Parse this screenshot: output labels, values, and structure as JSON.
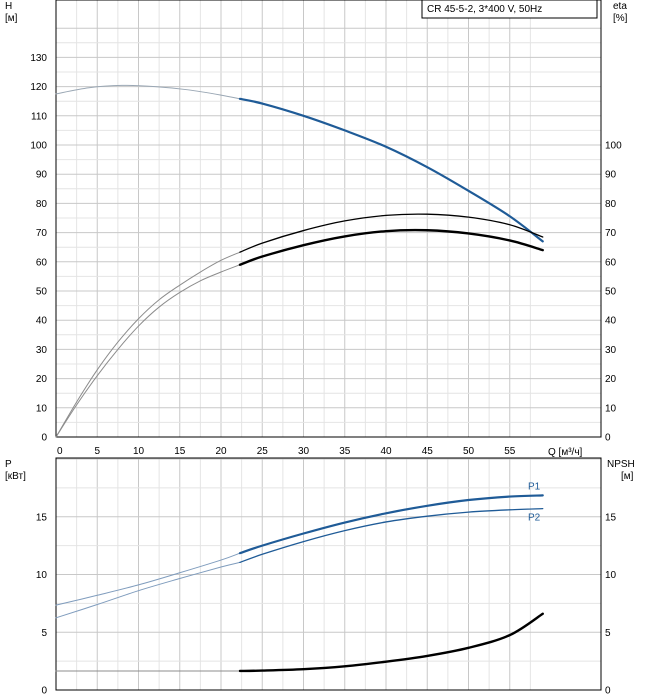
{
  "chart_data": [
    {
      "type": "line",
      "panel": "head-efficiency",
      "legend_box": "CR 45-5-2, 3*400 V, 50Hz",
      "legend_placement": "top-right",
      "grid": true,
      "xlabel": "Q [м³/ч]",
      "xlim": [
        0,
        59
      ],
      "x_ticks": [
        "0",
        "5",
        "10",
        "15",
        "20",
        "25",
        "30",
        "35",
        "40",
        "45",
        "50",
        "55"
      ],
      "ylabel_left": "H",
      "ylabel_left_unit": "[м]",
      "ylim_left": [
        0,
        140
      ],
      "y_ticks_left": [
        "0",
        "10",
        "20",
        "30",
        "40",
        "50",
        "60",
        "70",
        "80",
        "90",
        "100",
        "110",
        "120",
        "130"
      ],
      "ylabel_right": "eta",
      "ylabel_right_unit": "[%]",
      "ylim_right": [
        0,
        140
      ],
      "y_ticks_right": [
        "0",
        "10",
        "20",
        "30",
        "40",
        "50",
        "60",
        "70",
        "80",
        "90",
        "100"
      ],
      "series": [
        {
          "key": "head_thin",
          "axis": "left",
          "color": "#9aa7b4",
          "x": [
            0,
            4,
            8,
            12,
            16,
            20,
            22.3
          ],
          "y": [
            117.5,
            119.6,
            120.4,
            120.0,
            118.9,
            117.1,
            115.8
          ]
        },
        {
          "key": "head",
          "axis": "left",
          "color": "#1f5b97",
          "x": [
            22.3,
            25,
            30,
            35,
            40,
            45,
            50,
            55,
            59
          ],
          "y": [
            115.8,
            114.2,
            110.0,
            105.0,
            99.4,
            92.4,
            84.3,
            75.6,
            67.0
          ]
        },
        {
          "key": "eta_thin_upper",
          "axis": "right",
          "color": "#8c8c8c",
          "x": [
            0,
            2.5,
            5,
            7.5,
            10,
            12.5,
            15,
            17.5,
            20,
            22.3
          ],
          "y": [
            0,
            12,
            23,
            32.5,
            40.5,
            47,
            52,
            56.5,
            60.5,
            63.3
          ]
        },
        {
          "key": "eta_thin_lower",
          "axis": "right",
          "color": "#8c8c8c",
          "x": [
            0,
            2.5,
            5,
            7.5,
            10,
            12.5,
            15,
            17.5,
            20,
            22.3
          ],
          "y": [
            0,
            11,
            21,
            30,
            38,
            44.5,
            49.5,
            53.5,
            56.5,
            59.0
          ]
        },
        {
          "key": "eta_upper",
          "axis": "right",
          "color": "#000000",
          "x": [
            22.3,
            25,
            30,
            35,
            40,
            45,
            50,
            55,
            59
          ],
          "y": [
            63.3,
            66.4,
            70.7,
            74.0,
            75.9,
            76.3,
            75.3,
            72.7,
            68.5
          ]
        },
        {
          "key": "eta_lower",
          "axis": "right",
          "color": "#000000",
          "x": [
            22.3,
            25,
            30,
            35,
            40,
            45,
            50,
            55,
            59
          ],
          "y": [
            59.0,
            61.8,
            65.7,
            68.7,
            70.5,
            70.8,
            69.7,
            67.3,
            64.0
          ]
        }
      ]
    },
    {
      "type": "line",
      "panel": "power-npsh",
      "grid": true,
      "xlim": [
        0,
        59
      ],
      "ylabel_left": "P",
      "ylabel_left_unit": "[кВт]",
      "ylim_left": [
        0,
        20.2
      ],
      "y_ticks_left": [
        "0",
        "5",
        "10",
        "15"
      ],
      "ylabel_right": "NPSH",
      "ylabel_right_unit": "[м]",
      "ylim_right": [
        0,
        20.2
      ],
      "y_ticks_right": [
        "0",
        "5",
        "10",
        "15"
      ],
      "series": [
        {
          "key": "p1_thin",
          "axis": "left",
          "color": "#7f9cbd",
          "x": [
            0,
            5,
            10,
            15,
            20,
            22.3
          ],
          "y": [
            7.35,
            8.2,
            9.1,
            10.15,
            11.25,
            11.85
          ]
        },
        {
          "key": "p2_thin",
          "axis": "left",
          "color": "#7f9cbd",
          "x": [
            0,
            5,
            10,
            15,
            20,
            22.3
          ],
          "y": [
            6.25,
            7.4,
            8.6,
            9.65,
            10.65,
            11.05
          ]
        },
        {
          "key": "p1",
          "axis": "left",
          "name": "P1",
          "color": "#1f5b97",
          "x": [
            22.3,
            25,
            30,
            35,
            40,
            45,
            50,
            55,
            59
          ],
          "y": [
            11.85,
            12.5,
            13.55,
            14.5,
            15.3,
            15.95,
            16.45,
            16.75,
            16.85
          ]
        },
        {
          "key": "p2",
          "axis": "left",
          "name": "P2",
          "color": "#1f5b97",
          "x": [
            22.3,
            25,
            30,
            35,
            40,
            45,
            50,
            55,
            59
          ],
          "y": [
            11.05,
            11.75,
            12.85,
            13.8,
            14.55,
            15.05,
            15.4,
            15.6,
            15.7
          ]
        },
        {
          "key": "npsh_thin",
          "axis": "right",
          "color": "#8c8c8c",
          "x": [
            0,
            22.3
          ],
          "y": [
            1.65,
            1.65
          ]
        },
        {
          "key": "npsh",
          "axis": "right",
          "color": "#000000",
          "x": [
            22.3,
            25,
            30,
            35,
            40,
            45,
            50,
            55,
            59
          ],
          "y": [
            1.65,
            1.68,
            1.8,
            2.05,
            2.45,
            2.95,
            3.65,
            4.75,
            6.6
          ]
        }
      ]
    }
  ]
}
